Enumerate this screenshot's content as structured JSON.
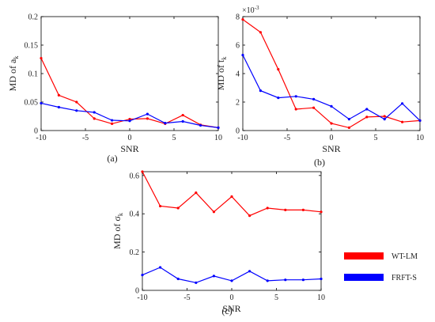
{
  "series_styles": [
    {
      "name": "WT-LM",
      "color": "#ff0000"
    },
    {
      "name": "FRFT-S",
      "color": "#0000ff"
    }
  ],
  "chart_data": [
    {
      "type": "line",
      "caption": "(a)",
      "xlabel": "SNR",
      "ylabel_prefix": "MD of a",
      "ylabel_sub": "k",
      "xlim": [
        -10,
        10
      ],
      "ylim": [
        0,
        0.2
      ],
      "xticks": [
        -10,
        -5,
        0,
        5,
        10
      ],
      "xtick_labels": [
        "-10",
        "-5",
        "0",
        "5",
        "10"
      ],
      "yticks": [
        0,
        0.05,
        0.1,
        0.15,
        0.2
      ],
      "ytick_labels": [
        "0",
        "0.05",
        "0.1",
        "0.15",
        "0.2"
      ],
      "grid": false,
      "x": [
        -10,
        -8,
        -6,
        -4,
        -2,
        0,
        2,
        4,
        6,
        8,
        10
      ],
      "series": [
        {
          "name": "WT-LM",
          "values": [
            0.127,
            0.062,
            0.05,
            0.021,
            0.012,
            0.02,
            0.021,
            0.012,
            0.027,
            0.01,
            0.005
          ]
        },
        {
          "name": "FRFT-S",
          "values": [
            0.048,
            0.041,
            0.035,
            0.032,
            0.018,
            0.017,
            0.029,
            0.013,
            0.016,
            0.009,
            0.005
          ]
        }
      ]
    },
    {
      "type": "line",
      "caption": "(b)",
      "xlabel": "SNR",
      "ylabel_prefix": "MD of t",
      "ylabel_sub": "k",
      "exponent_label": "×10",
      "exponent_power": "-3",
      "xlim": [
        -10,
        10
      ],
      "ylim": [
        0,
        8
      ],
      "xticks": [
        -10,
        -5,
        0,
        5,
        10
      ],
      "xtick_labels": [
        "-10",
        "-5",
        "0",
        "5",
        "10"
      ],
      "yticks": [
        0,
        2,
        4,
        6,
        8
      ],
      "ytick_labels": [
        "0",
        "2",
        "4",
        "6",
        "8"
      ],
      "grid": false,
      "x": [
        -10,
        -8,
        -6,
        -4,
        -2,
        0,
        2,
        4,
        6,
        8,
        10
      ],
      "series": [
        {
          "name": "WT-LM",
          "values": [
            7.8,
            6.9,
            4.3,
            1.5,
            1.6,
            0.5,
            0.2,
            0.95,
            1.0,
            0.6,
            0.7
          ]
        },
        {
          "name": "FRFT-S",
          "values": [
            5.3,
            2.8,
            2.3,
            2.4,
            2.2,
            1.7,
            0.8,
            1.5,
            0.8,
            1.9,
            0.7
          ]
        }
      ]
    },
    {
      "type": "line",
      "caption": "(c)",
      "xlabel": "SNR",
      "ylabel_prefix": "MD of σ",
      "ylabel_sub": "k",
      "xlim": [
        -10,
        10
      ],
      "ylim": [
        0,
        0.62
      ],
      "xticks": [
        -10,
        -5,
        0,
        5,
        10
      ],
      "xtick_labels": [
        "-10",
        "-5",
        "0",
        "5",
        "10"
      ],
      "yticks": [
        0,
        0.2,
        0.4,
        0.6
      ],
      "ytick_labels": [
        "0",
        "0.2",
        "0.4",
        "0.6"
      ],
      "grid": false,
      "x": [
        -10,
        -8,
        -6,
        -4,
        -2,
        0,
        2,
        4,
        6,
        8,
        10
      ],
      "series": [
        {
          "name": "WT-LM",
          "values": [
            0.62,
            0.44,
            0.43,
            0.51,
            0.41,
            0.49,
            0.39,
            0.43,
            0.42,
            0.42,
            0.41
          ]
        },
        {
          "name": "FRFT-S",
          "values": [
            0.08,
            0.12,
            0.06,
            0.04,
            0.075,
            0.05,
            0.1,
            0.05,
            0.055,
            0.055,
            0.06
          ]
        }
      ]
    }
  ]
}
